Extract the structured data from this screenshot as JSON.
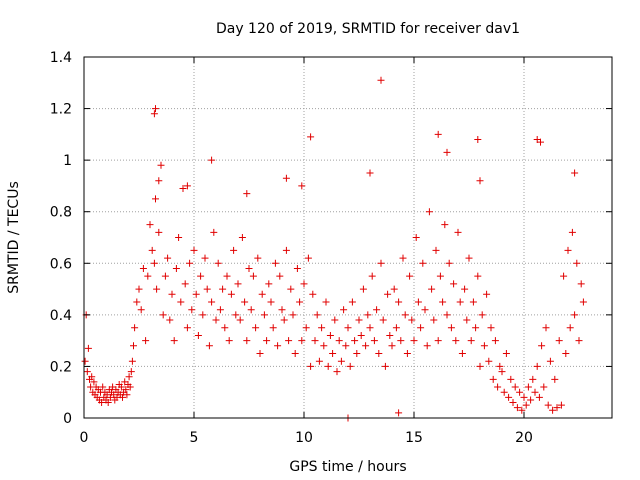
{
  "chart_data": {
    "type": "scatter",
    "title": "Day 120 of 2019, SRMTID for receiver dav1",
    "xlabel": "GPS time / hours",
    "ylabel": "SRMTID / TECUs",
    "xlim": [
      0,
      24
    ],
    "ylim": [
      0,
      1.4
    ],
    "xticks": [
      0,
      5,
      10,
      15,
      20
    ],
    "xtick_labels": [
      "0",
      "5",
      "10",
      "15",
      "20"
    ],
    "yticks": [
      0,
      0.2,
      0.4,
      0.6,
      0.8,
      1.0,
      1.2,
      1.4
    ],
    "ytick_labels": [
      "0",
      "0.2",
      "0.4",
      "0.6",
      "0.8",
      "1",
      "1.2",
      "1.4"
    ],
    "grid": true,
    "marker": "plus",
    "color": "#e00000",
    "series": [
      {
        "name": "SRMTID",
        "x": [
          0.05,
          0.1,
          0.15,
          0.2,
          0.25,
          0.3,
          0.35,
          0.4,
          0.45,
          0.5,
          0.55,
          0.6,
          0.65,
          0.7,
          0.75,
          0.8,
          0.85,
          0.9,
          0.95,
          1.0,
          1.05,
          1.1,
          1.15,
          1.2,
          1.25,
          1.3,
          1.35,
          1.4,
          1.45,
          1.5,
          1.55,
          1.6,
          1.65,
          1.7,
          1.75,
          1.8,
          1.85,
          1.9,
          1.95,
          2.0,
          2.05,
          2.1,
          2.15,
          2.2,
          2.25,
          2.3,
          2.4,
          2.5,
          2.6,
          2.7,
          2.8,
          2.9,
          3.0,
          3.1,
          3.2,
          3.25,
          3.3,
          3.4,
          3.5,
          3.6,
          3.7,
          3.8,
          3.9,
          4.0,
          4.1,
          4.2,
          4.3,
          4.4,
          4.5,
          4.6,
          4.7,
          4.8,
          4.9,
          5.0,
          5.1,
          5.2,
          5.3,
          5.4,
          5.5,
          5.6,
          5.7,
          5.8,
          5.9,
          6.0,
          6.1,
          6.2,
          6.3,
          6.4,
          6.5,
          6.6,
          6.7,
          6.8,
          6.9,
          7.0,
          7.1,
          7.2,
          7.3,
          7.4,
          7.5,
          7.6,
          7.7,
          7.8,
          7.9,
          8.0,
          8.1,
          8.2,
          8.3,
          8.4,
          8.5,
          8.6,
          8.7,
          8.8,
          8.9,
          9.0,
          9.1,
          9.2,
          9.3,
          9.4,
          9.5,
          9.6,
          9.7,
          9.8,
          9.9,
          10.0,
          10.1,
          10.2,
          10.3,
          10.4,
          10.5,
          10.6,
          10.7,
          10.8,
          10.9,
          11.0,
          11.1,
          11.2,
          11.3,
          11.4,
          11.5,
          11.6,
          11.7,
          11.8,
          11.9,
          12.0,
          12.1,
          12.2,
          12.3,
          12.4,
          12.5,
          12.6,
          12.7,
          12.8,
          12.9,
          13.0,
          13.1,
          13.2,
          13.3,
          13.4,
          13.5,
          13.6,
          13.7,
          13.8,
          13.9,
          14.0,
          14.1,
          14.2,
          14.3,
          14.4,
          14.5,
          14.6,
          14.7,
          14.8,
          14.9,
          15.0,
          15.1,
          15.2,
          15.3,
          15.4,
          15.5,
          15.6,
          15.7,
          15.8,
          15.9,
          16.0,
          16.1,
          16.2,
          16.3,
          16.4,
          16.5,
          16.6,
          16.7,
          16.8,
          16.9,
          17.0,
          17.1,
          17.2,
          17.3,
          17.4,
          17.5,
          17.6,
          17.7,
          17.8,
          17.9,
          18.0,
          18.1,
          18.2,
          18.3,
          18.4,
          18.5,
          18.6,
          18.7,
          18.8,
          18.9,
          19.0,
          19.1,
          19.2,
          19.3,
          19.4,
          19.5,
          19.6,
          19.7,
          19.8,
          19.9,
          20.0,
          20.1,
          20.2,
          20.3,
          20.4,
          20.5,
          20.6,
          20.7,
          20.8,
          20.9,
          21.0,
          21.1,
          21.2,
          21.3,
          21.4,
          21.5,
          21.6,
          21.7,
          21.8,
          21.9,
          22.0,
          22.1,
          22.2,
          22.3,
          22.4,
          22.5,
          22.6,
          22.7,
          3.2,
          3.25,
          5.8,
          10.3,
          13.5,
          16.1,
          17.9,
          20.6,
          20.75,
          22.3,
          3.4,
          4.7,
          9.2,
          13.0,
          16.5,
          18.0,
          12.0,
          14.3,
          9.9,
          7.4
        ],
        "y": [
          0.22,
          0.4,
          0.18,
          0.27,
          0.15,
          0.12,
          0.16,
          0.1,
          0.14,
          0.09,
          0.12,
          0.08,
          0.11,
          0.07,
          0.1,
          0.06,
          0.12,
          0.08,
          0.1,
          0.07,
          0.09,
          0.06,
          0.11,
          0.08,
          0.1,
          0.12,
          0.09,
          0.07,
          0.11,
          0.08,
          0.1,
          0.13,
          0.09,
          0.12,
          0.08,
          0.1,
          0.14,
          0.11,
          0.09,
          0.13,
          0.16,
          0.12,
          0.18,
          0.22,
          0.28,
          0.35,
          0.45,
          0.5,
          0.42,
          0.58,
          0.3,
          0.55,
          0.75,
          0.65,
          0.6,
          0.85,
          0.5,
          0.72,
          0.98,
          0.4,
          0.55,
          0.62,
          0.38,
          0.48,
          0.3,
          0.58,
          0.7,
          0.45,
          0.89,
          0.52,
          0.35,
          0.6,
          0.42,
          0.65,
          0.48,
          0.32,
          0.55,
          0.4,
          0.62,
          0.5,
          0.28,
          0.45,
          0.72,
          0.38,
          0.6,
          0.42,
          0.5,
          0.35,
          0.55,
          0.3,
          0.48,
          0.65,
          0.4,
          0.52,
          0.38,
          0.7,
          0.45,
          0.3,
          0.58,
          0.42,
          0.55,
          0.35,
          0.62,
          0.25,
          0.48,
          0.4,
          0.3,
          0.52,
          0.45,
          0.35,
          0.6,
          0.28,
          0.55,
          0.42,
          0.38,
          0.65,
          0.3,
          0.5,
          0.4,
          0.25,
          0.58,
          0.45,
          0.3,
          0.52,
          0.35,
          0.62,
          0.2,
          0.48,
          0.3,
          0.4,
          0.22,
          0.35,
          0.28,
          0.45,
          0.2,
          0.32,
          0.25,
          0.38,
          0.18,
          0.3,
          0.22,
          0.42,
          0.28,
          0.35,
          0.2,
          0.45,
          0.3,
          0.25,
          0.38,
          0.32,
          0.5,
          0.28,
          0.4,
          0.35,
          0.55,
          0.3,
          0.42,
          0.25,
          0.6,
          0.38,
          0.2,
          0.48,
          0.32,
          0.28,
          0.5,
          0.35,
          0.45,
          0.3,
          0.62,
          0.4,
          0.25,
          0.55,
          0.38,
          0.3,
          0.7,
          0.45,
          0.35,
          0.6,
          0.42,
          0.28,
          0.8,
          0.5,
          0.38,
          0.65,
          0.3,
          0.55,
          0.45,
          0.75,
          0.4,
          0.6,
          0.35,
          0.52,
          0.3,
          0.72,
          0.45,
          0.25,
          0.5,
          0.38,
          0.62,
          0.3,
          0.45,
          0.35,
          0.55,
          0.2,
          0.4,
          0.28,
          0.48,
          0.22,
          0.35,
          0.15,
          0.3,
          0.12,
          0.2,
          0.18,
          0.1,
          0.25,
          0.08,
          0.15,
          0.06,
          0.12,
          0.04,
          0.1,
          0.03,
          0.08,
          0.05,
          0.12,
          0.07,
          0.15,
          0.1,
          0.2,
          0.08,
          0.28,
          0.12,
          0.35,
          0.05,
          0.22,
          0.03,
          0.15,
          0.04,
          0.3,
          0.05,
          0.55,
          0.25,
          0.65,
          0.35,
          0.72,
          0.4,
          0.6,
          0.3,
          0.52,
          0.45,
          1.18,
          1.2,
          1.0,
          1.09,
          1.31,
          1.1,
          1.08,
          1.08,
          1.07,
          0.95,
          0.92,
          0.9,
          0.93,
          0.95,
          1.03,
          0.92,
          0.0,
          0.02,
          0.9,
          0.87
        ]
      }
    ]
  }
}
